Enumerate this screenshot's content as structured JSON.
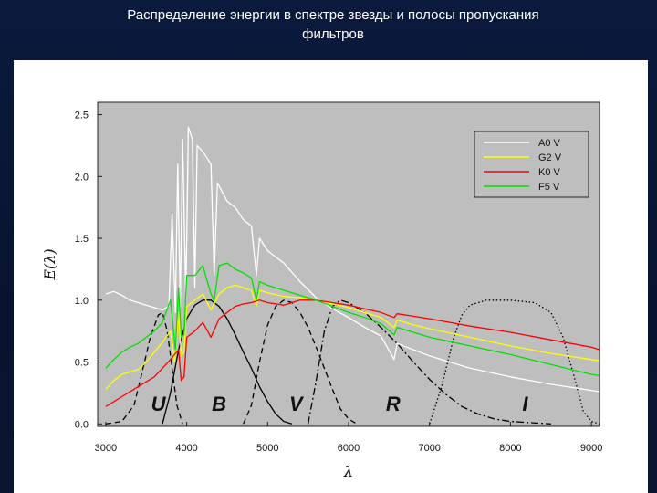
{
  "slide": {
    "title_line1": "Распределение энергии в спектре звезды и полосы пропускания",
    "title_line2": "фильтров"
  },
  "chart_data": {
    "type": "line",
    "xlabel": "λ",
    "ylabel": "E(λ)",
    "xlim": [
      2900,
      9100
    ],
    "ylim": [
      -0.02,
      2.6
    ],
    "x_ticks": [
      3000,
      4000,
      5000,
      6000,
      7000,
      8000,
      9000
    ],
    "y_ticks": [
      0.0,
      0.5,
      1.0,
      1.5,
      2.0,
      2.5
    ],
    "y_tick_labels": [
      "0.0",
      "0.5",
      "1.0",
      "1.5",
      "2.0",
      "2.5"
    ],
    "grid": false,
    "legend_position": "top-right",
    "background_color": "#bebebe",
    "series": [
      {
        "name": "A0 V",
        "color": "#ffffff",
        "points": [
          [
            3000,
            1.05
          ],
          [
            3100,
            1.07
          ],
          [
            3200,
            1.04
          ],
          [
            3300,
            1.0
          ],
          [
            3400,
            0.98
          ],
          [
            3500,
            0.96
          ],
          [
            3600,
            0.94
          ],
          [
            3700,
            0.92
          ],
          [
            3780,
            0.95
          ],
          [
            3820,
            1.7
          ],
          [
            3860,
            0.9
          ],
          [
            3890,
            2.1
          ],
          [
            3920,
            0.95
          ],
          [
            3950,
            2.3
          ],
          [
            3990,
            1.0
          ],
          [
            4020,
            2.4
          ],
          [
            4070,
            2.3
          ],
          [
            4101,
            1.1
          ],
          [
            4130,
            2.25
          ],
          [
            4200,
            2.2
          ],
          [
            4300,
            2.1
          ],
          [
            4340,
            1.2
          ],
          [
            4380,
            1.95
          ],
          [
            4500,
            1.8
          ],
          [
            4600,
            1.75
          ],
          [
            4700,
            1.65
          ],
          [
            4800,
            1.6
          ],
          [
            4861,
            1.2
          ],
          [
            4900,
            1.5
          ],
          [
            5000,
            1.4
          ],
          [
            5200,
            1.3
          ],
          [
            5400,
            1.15
          ],
          [
            5600,
            1.02
          ],
          [
            5800,
            0.93
          ],
          [
            6000,
            0.86
          ],
          [
            6200,
            0.78
          ],
          [
            6400,
            0.71
          ],
          [
            6562,
            0.52
          ],
          [
            6600,
            0.65
          ],
          [
            6800,
            0.6
          ],
          [
            7000,
            0.55
          ],
          [
            7500,
            0.45
          ],
          [
            8000,
            0.38
          ],
          [
            8500,
            0.32
          ],
          [
            9000,
            0.27
          ],
          [
            9100,
            0.26
          ]
        ]
      },
      {
        "name": "G2 V",
        "color": "#ffff00",
        "points": [
          [
            3000,
            0.28
          ],
          [
            3100,
            0.35
          ],
          [
            3200,
            0.4
          ],
          [
            3300,
            0.42
          ],
          [
            3400,
            0.44
          ],
          [
            3500,
            0.5
          ],
          [
            3600,
            0.58
          ],
          [
            3700,
            0.66
          ],
          [
            3800,
            0.75
          ],
          [
            3850,
            0.5
          ],
          [
            3900,
            0.9
          ],
          [
            3933,
            0.55
          ],
          [
            3968,
            0.58
          ],
          [
            4000,
            0.95
          ],
          [
            4100,
            1.0
          ],
          [
            4200,
            1.05
          ],
          [
            4300,
            0.92
          ],
          [
            4400,
            1.05
          ],
          [
            4500,
            1.1
          ],
          [
            4600,
            1.12
          ],
          [
            4700,
            1.1
          ],
          [
            4800,
            1.08
          ],
          [
            4861,
            0.95
          ],
          [
            4900,
            1.08
          ],
          [
            5000,
            1.06
          ],
          [
            5200,
            1.03
          ],
          [
            5400,
            1.02
          ],
          [
            5600,
            1.0
          ],
          [
            5800,
            0.97
          ],
          [
            6000,
            0.94
          ],
          [
            6200,
            0.9
          ],
          [
            6400,
            0.86
          ],
          [
            6562,
            0.78
          ],
          [
            6600,
            0.84
          ],
          [
            6800,
            0.8
          ],
          [
            7000,
            0.77
          ],
          [
            7500,
            0.7
          ],
          [
            8000,
            0.63
          ],
          [
            8500,
            0.57
          ],
          [
            9000,
            0.52
          ],
          [
            9100,
            0.51
          ]
        ]
      },
      {
        "name": "K0 V",
        "color": "#ff0000",
        "points": [
          [
            3000,
            0.14
          ],
          [
            3100,
            0.18
          ],
          [
            3200,
            0.22
          ],
          [
            3300,
            0.26
          ],
          [
            3400,
            0.3
          ],
          [
            3500,
            0.34
          ],
          [
            3600,
            0.38
          ],
          [
            3700,
            0.45
          ],
          [
            3800,
            0.52
          ],
          [
            3900,
            0.6
          ],
          [
            3933,
            0.35
          ],
          [
            3968,
            0.38
          ],
          [
            4000,
            0.7
          ],
          [
            4100,
            0.75
          ],
          [
            4200,
            0.82
          ],
          [
            4300,
            0.7
          ],
          [
            4400,
            0.85
          ],
          [
            4500,
            0.9
          ],
          [
            4600,
            0.95
          ],
          [
            4700,
            0.97
          ],
          [
            4800,
            0.98
          ],
          [
            4900,
            1.0
          ],
          [
            5000,
            0.98
          ],
          [
            5200,
            0.96
          ],
          [
            5400,
            1.0
          ],
          [
            5600,
            1.0
          ],
          [
            5800,
            0.98
          ],
          [
            6000,
            0.96
          ],
          [
            6200,
            0.93
          ],
          [
            6400,
            0.9
          ],
          [
            6562,
            0.86
          ],
          [
            6600,
            0.89
          ],
          [
            6800,
            0.87
          ],
          [
            7000,
            0.85
          ],
          [
            7500,
            0.79
          ],
          [
            8000,
            0.74
          ],
          [
            8500,
            0.68
          ],
          [
            9000,
            0.62
          ],
          [
            9100,
            0.6
          ]
        ]
      },
      {
        "name": "F5 V",
        "color": "#00e000",
        "points": [
          [
            3000,
            0.45
          ],
          [
            3100,
            0.52
          ],
          [
            3200,
            0.58
          ],
          [
            3300,
            0.62
          ],
          [
            3400,
            0.65
          ],
          [
            3500,
            0.7
          ],
          [
            3600,
            0.75
          ],
          [
            3700,
            0.82
          ],
          [
            3800,
            1.0
          ],
          [
            3860,
            0.6
          ],
          [
            3900,
            1.1
          ],
          [
            3933,
            0.7
          ],
          [
            3968,
            0.72
          ],
          [
            4000,
            1.2
          ],
          [
            4100,
            1.2
          ],
          [
            4200,
            1.28
          ],
          [
            4300,
            1.05
          ],
          [
            4340,
            1.0
          ],
          [
            4400,
            1.28
          ],
          [
            4500,
            1.3
          ],
          [
            4600,
            1.25
          ],
          [
            4700,
            1.22
          ],
          [
            4800,
            1.18
          ],
          [
            4861,
            1.0
          ],
          [
            4900,
            1.15
          ],
          [
            5000,
            1.12
          ],
          [
            5200,
            1.08
          ],
          [
            5400,
            1.04
          ],
          [
            5600,
            1.0
          ],
          [
            5800,
            0.95
          ],
          [
            6000,
            0.9
          ],
          [
            6200,
            0.86
          ],
          [
            6400,
            0.81
          ],
          [
            6562,
            0.72
          ],
          [
            6600,
            0.78
          ],
          [
            6800,
            0.74
          ],
          [
            7000,
            0.7
          ],
          [
            7500,
            0.63
          ],
          [
            8000,
            0.56
          ],
          [
            8500,
            0.48
          ],
          [
            9000,
            0.4
          ],
          [
            9100,
            0.39
          ]
        ]
      }
    ],
    "filters": [
      {
        "name": "U",
        "label_x": 3650,
        "label_y": 0.18,
        "style": "dashed",
        "points": [
          [
            3000,
            0.0
          ],
          [
            3200,
            0.02
          ],
          [
            3350,
            0.15
          ],
          [
            3450,
            0.42
          ],
          [
            3550,
            0.7
          ],
          [
            3650,
            0.88
          ],
          [
            3700,
            0.9
          ],
          [
            3760,
            0.75
          ],
          [
            3820,
            0.45
          ],
          [
            3880,
            0.15
          ],
          [
            3950,
            0.0
          ]
        ]
      },
      {
        "name": "B",
        "label_x": 4400,
        "label_y": 0.18,
        "style": "solid",
        "points": [
          [
            3700,
            0.0
          ],
          [
            3800,
            0.25
          ],
          [
            3900,
            0.6
          ],
          [
            4000,
            0.85
          ],
          [
            4100,
            0.96
          ],
          [
            4200,
            1.0
          ],
          [
            4300,
            1.0
          ],
          [
            4400,
            0.95
          ],
          [
            4500,
            0.85
          ],
          [
            4600,
            0.72
          ],
          [
            4700,
            0.58
          ],
          [
            4800,
            0.45
          ],
          [
            4900,
            0.3
          ],
          [
            5000,
            0.18
          ],
          [
            5100,
            0.08
          ],
          [
            5200,
            0.02
          ],
          [
            5300,
            0.0
          ]
        ]
      },
      {
        "name": "V",
        "label_x": 5350,
        "label_y": 0.18,
        "style": "dashed",
        "points": [
          [
            4700,
            0.0
          ],
          [
            4800,
            0.15
          ],
          [
            4900,
            0.5
          ],
          [
            5000,
            0.8
          ],
          [
            5100,
            0.95
          ],
          [
            5200,
            1.0
          ],
          [
            5300,
            0.98
          ],
          [
            5400,
            0.9
          ],
          [
            5500,
            0.78
          ],
          [
            5600,
            0.62
          ],
          [
            5700,
            0.45
          ],
          [
            5800,
            0.28
          ],
          [
            5900,
            0.12
          ],
          [
            6000,
            0.04
          ],
          [
            6100,
            0.0
          ]
        ]
      },
      {
        "name": "R",
        "label_x": 6550,
        "label_y": 0.18,
        "style": "dashdot",
        "points": [
          [
            5500,
            0.0
          ],
          [
            5600,
            0.35
          ],
          [
            5700,
            0.75
          ],
          [
            5800,
            0.95
          ],
          [
            5900,
            1.0
          ],
          [
            6000,
            0.98
          ],
          [
            6200,
            0.9
          ],
          [
            6400,
            0.78
          ],
          [
            6600,
            0.65
          ],
          [
            6800,
            0.5
          ],
          [
            7000,
            0.36
          ],
          [
            7200,
            0.24
          ],
          [
            7400,
            0.14
          ],
          [
            7600,
            0.08
          ],
          [
            7800,
            0.04
          ],
          [
            8000,
            0.02
          ],
          [
            8500,
            0.0
          ]
        ]
      },
      {
        "name": "I",
        "label_x": 8180,
        "label_y": 0.18,
        "style": "dotted",
        "points": [
          [
            7000,
            0.0
          ],
          [
            7150,
            0.3
          ],
          [
            7300,
            0.7
          ],
          [
            7400,
            0.88
          ],
          [
            7500,
            0.96
          ],
          [
            7700,
            1.0
          ],
          [
            8000,
            1.0
          ],
          [
            8300,
            0.98
          ],
          [
            8500,
            0.9
          ],
          [
            8650,
            0.7
          ],
          [
            8800,
            0.35
          ],
          [
            8900,
            0.1
          ],
          [
            9000,
            0.02
          ],
          [
            9100,
            0.0
          ]
        ]
      }
    ]
  }
}
